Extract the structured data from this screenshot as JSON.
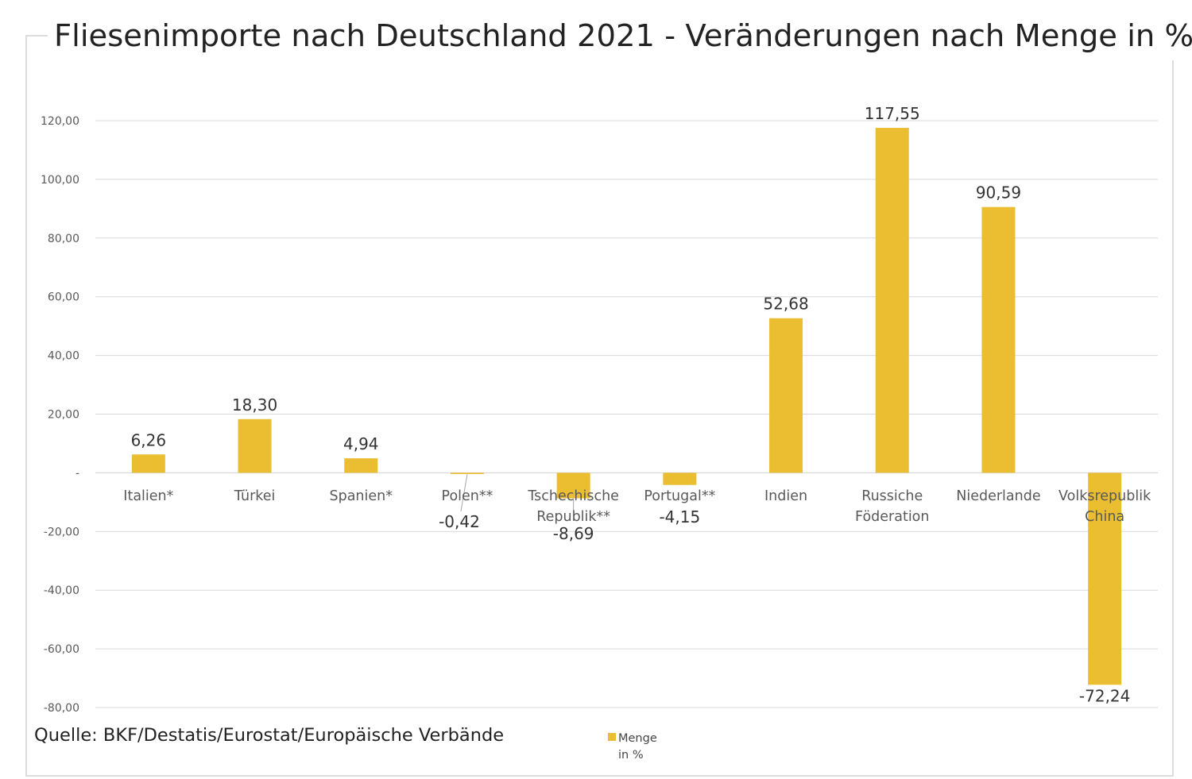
{
  "chart_data": {
    "type": "bar",
    "title": "Fliesenimporte nach Deutschland 2021 - Veränderungen nach Menge in %",
    "source": "Quelle: BKF/Destatis/Eurostat/Europäische Verbände",
    "categories": [
      [
        "Italien*"
      ],
      [
        "Türkei"
      ],
      [
        "Spanien*"
      ],
      [
        "Polen**"
      ],
      [
        "Tschechische",
        "Republik**"
      ],
      [
        "Portugal**"
      ],
      [
        "Indien"
      ],
      [
        "Russiche",
        "Föderation"
      ],
      [
        "Niederlande"
      ],
      [
        "Volksrepublik",
        "China"
      ]
    ],
    "series": [
      {
        "name": "Menge in %",
        "color": "#ebbd31",
        "values": [
          6.26,
          18.3,
          4.94,
          -0.42,
          -8.69,
          -4.15,
          52.68,
          117.55,
          90.59,
          -72.24
        ],
        "data_labels": [
          "6,26",
          "18,30",
          "4,94",
          "-0,42",
          "-8,69",
          "-4,15",
          "52,68",
          "117,55",
          "90,59",
          "-72,24"
        ]
      }
    ],
    "ylim": [
      -80,
      120
    ],
    "yticks": [
      -80,
      -60,
      -40,
      -20,
      0,
      20,
      40,
      60,
      80,
      100,
      120
    ],
    "ytick_labels": [
      "-80,00",
      "-60,00",
      "-40,00",
      "-20,00",
      "-",
      "20,00",
      "40,00",
      "60,00",
      "80,00",
      "100,00",
      "120,00"
    ],
    "grid": true,
    "legend": {
      "position": "bottom",
      "label_lines": [
        "Menge",
        "in %"
      ]
    }
  }
}
